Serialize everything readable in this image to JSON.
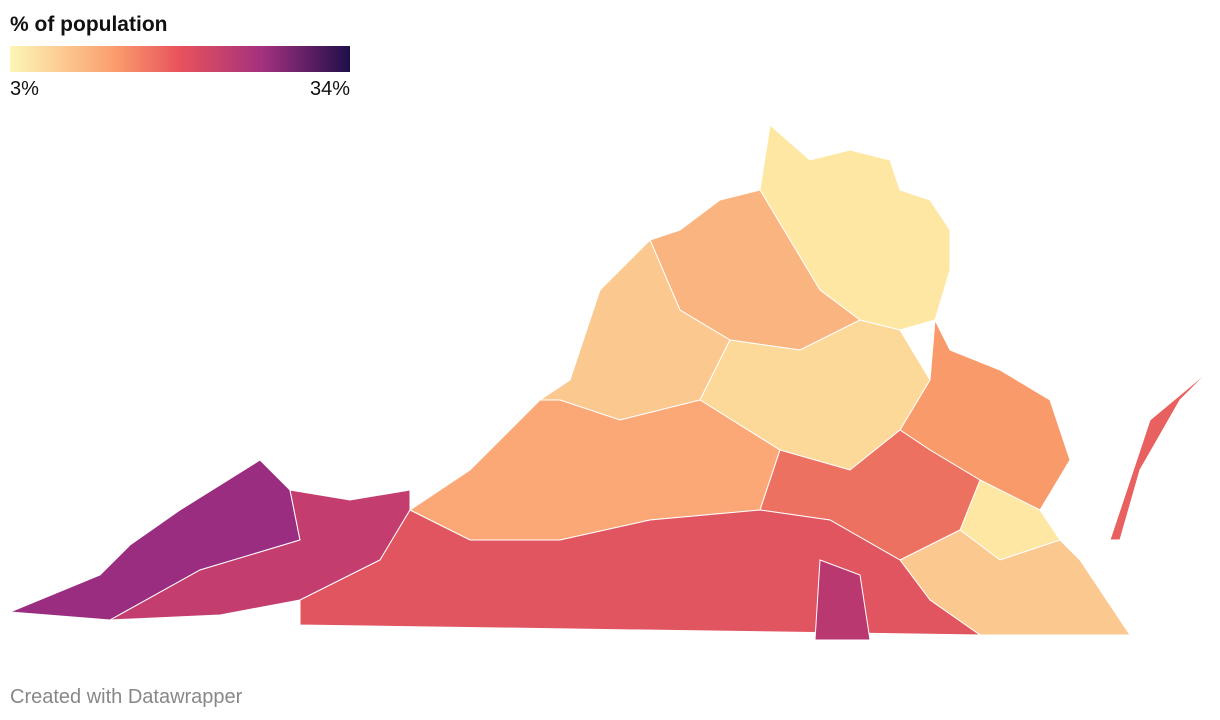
{
  "title": "% of population",
  "legend": {
    "min": {
      "value": 3,
      "label": "3%"
    },
    "max": {
      "value": 34,
      "label": "34%"
    }
  },
  "footer": "Created with Datawrapper"
}
